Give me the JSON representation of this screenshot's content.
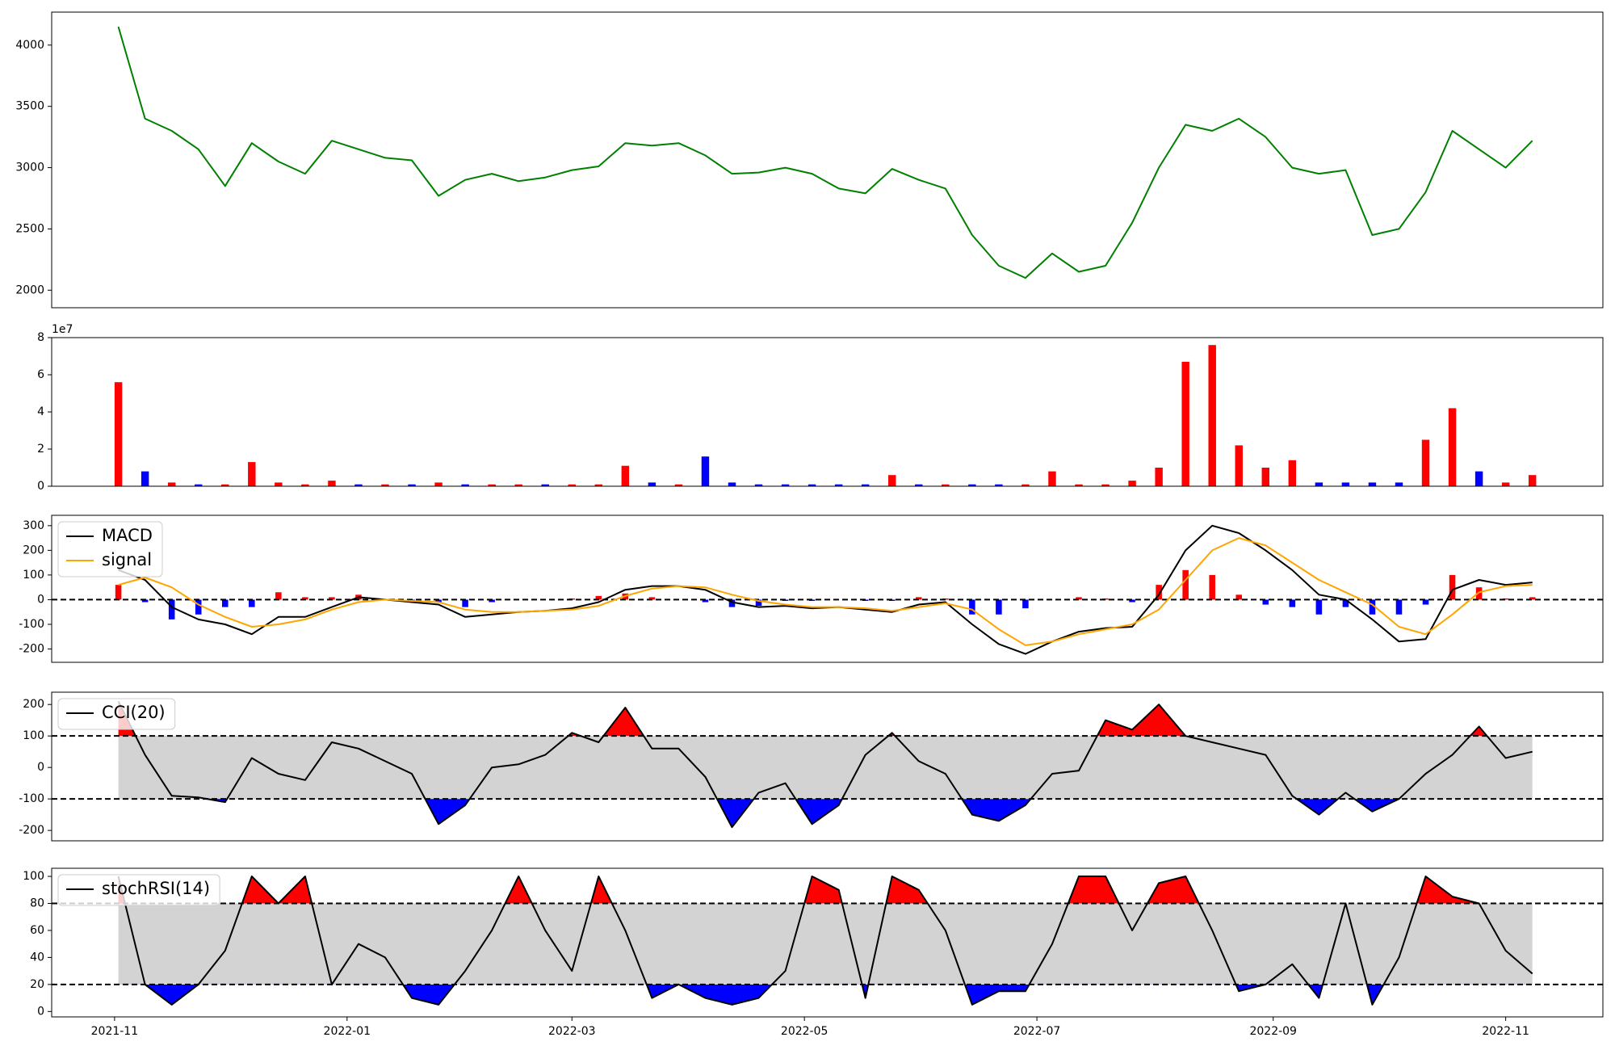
{
  "chart_data": [
    {
      "type": "line",
      "x": [
        1,
        8,
        15,
        22,
        29,
        36,
        43,
        50,
        57,
        64,
        71,
        78,
        85,
        92,
        99,
        106,
        113,
        120,
        127,
        134,
        141,
        148,
        155,
        162,
        169,
        176,
        183,
        190,
        197,
        204,
        211,
        218,
        225,
        232,
        239,
        246,
        253,
        260,
        267,
        274,
        281,
        288,
        295,
        302,
        309,
        316,
        323,
        330,
        337,
        344,
        351,
        358,
        365,
        372
      ],
      "series": [
        {
          "color": "green",
          "values": [
            4150,
            3400,
            3300,
            3150,
            2850,
            3200,
            3050,
            2950,
            3220,
            3150,
            3080,
            3060,
            2770,
            2900,
            2950,
            2890,
            2920,
            2980,
            3010,
            3200,
            3180,
            3200,
            3100,
            2950,
            2960,
            3000,
            2950,
            2830,
            2790,
            2990,
            2900,
            2830,
            2450,
            2200,
            2100,
            2300,
            2150,
            2200,
            2550,
            3000,
            3350,
            3300,
            3400,
            3250,
            3000,
            2950,
            2980,
            2450,
            2500,
            2800,
            3300,
            3150,
            3000,
            3220
          ]
        }
      ],
      "xlim": [
        -16.5,
        390.5
      ],
      "ylim": [
        1857,
        4269
      ],
      "yticks": [
        2000,
        2500,
        3000,
        3500,
        4000
      ]
    },
    {
      "type": "bar",
      "x": [
        1,
        8,
        15,
        22,
        29,
        36,
        43,
        50,
        57,
        64,
        71,
        78,
        85,
        92,
        99,
        106,
        113,
        120,
        127,
        134,
        141,
        148,
        155,
        162,
        169,
        176,
        183,
        190,
        197,
        204,
        211,
        218,
        225,
        232,
        239,
        246,
        253,
        260,
        267,
        274,
        281,
        288,
        295,
        302,
        309,
        316,
        323,
        330,
        337,
        344,
        351,
        358,
        365,
        372
      ],
      "values": [
        56000000,
        8000000,
        2000000,
        1000000,
        1000000,
        13000000,
        2000000,
        1000000,
        3000000,
        1000000,
        1000000,
        1000000,
        2000000,
        1000000,
        1000000,
        1000000,
        1000000,
        1000000,
        1000000,
        11000000,
        2000000,
        1000000,
        16000000,
        2000000,
        1000000,
        1000000,
        1000000,
        1000000,
        1000000,
        6000000,
        1000000,
        1000000,
        1000000,
        1000000,
        1000000,
        8000000,
        1000000,
        1000000,
        3000000,
        10000000,
        67000000,
        76000000,
        22000000,
        10000000,
        14000000,
        2000000,
        2000000,
        2000000,
        2000000,
        25000000,
        42000000,
        8000000,
        2000000,
        6000000
      ],
      "colors": [
        "red",
        "blue",
        "red",
        "blue",
        "red",
        "red",
        "red",
        "red",
        "red",
        "blue",
        "red",
        "blue",
        "red",
        "blue",
        "red",
        "red",
        "blue",
        "red",
        "red",
        "red",
        "blue",
        "red",
        "blue",
        "blue",
        "blue",
        "blue",
        "blue",
        "blue",
        "blue",
        "red",
        "blue",
        "red",
        "blue",
        "blue",
        "red",
        "red",
        "red",
        "red",
        "red",
        "red",
        "red",
        "red",
        "red",
        "red",
        "red",
        "blue",
        "blue",
        "blue",
        "blue",
        "red",
        "red",
        "blue",
        "red",
        "red"
      ],
      "xlim": [
        -16.5,
        390.5
      ],
      "ylim": [
        0,
        80000000
      ],
      "yticks": [
        0,
        {
          "value": 20000000,
          "label": "2"
        },
        {
          "value": 40000000,
          "label": "4"
        },
        {
          "value": 60000000,
          "label": "6"
        },
        {
          "value": 80000000,
          "label": "8"
        }
      ],
      "y_offset_label": "1e7"
    },
    {
      "type": "macd",
      "x": [
        1,
        8,
        15,
        22,
        29,
        36,
        43,
        50,
        57,
        64,
        71,
        78,
        85,
        92,
        99,
        106,
        113,
        120,
        127,
        134,
        141,
        148,
        155,
        162,
        169,
        176,
        183,
        190,
        197,
        204,
        211,
        218,
        225,
        232,
        239,
        246,
        253,
        260,
        267,
        274,
        281,
        288,
        295,
        302,
        309,
        316,
        323,
        330,
        337,
        344,
        351,
        358,
        365,
        372
      ],
      "series": [
        {
          "name": "MACD",
          "color": "black",
          "values": [
            120,
            80,
            -30,
            -80,
            -100,
            -140,
            -70,
            -70,
            -30,
            10,
            0,
            -10,
            -20,
            -70,
            -60,
            -50,
            -45,
            -35,
            -10,
            40,
            55,
            55,
            40,
            -10,
            -30,
            -25,
            -35,
            -30,
            -40,
            -50,
            -20,
            -10,
            -100,
            -180,
            -220,
            -170,
            -130,
            -115,
            -110,
            20,
            200,
            300,
            270,
            200,
            120,
            20,
            0,
            -80,
            -170,
            -160,
            40,
            80,
            60,
            70
          ]
        },
        {
          "name": "signal",
          "color": "orange",
          "values": [
            60,
            90,
            50,
            -20,
            -70,
            -110,
            -100,
            -80,
            -40,
            -10,
            0,
            -5,
            -10,
            -40,
            -50,
            -50,
            -45,
            -40,
            -25,
            15,
            45,
            55,
            50,
            20,
            -5,
            -20,
            -30,
            -30,
            -35,
            -45,
            -30,
            -15,
            -40,
            -120,
            -185,
            -170,
            -140,
            -120,
            -100,
            -40,
            80,
            200,
            250,
            220,
            150,
            80,
            30,
            -20,
            -110,
            -140,
            -60,
            30,
            55,
            60
          ]
        }
      ],
      "histogram": {
        "values": [
          60,
          -10,
          -80,
          -60,
          -30,
          -30,
          30,
          10,
          10,
          20,
          0,
          -5,
          -10,
          -30,
          -10,
          0,
          0,
          5,
          15,
          25,
          10,
          0,
          -10,
          -30,
          -25,
          -5,
          -5,
          0,
          -5,
          -5,
          10,
          5,
          -60,
          -60,
          -35,
          0,
          10,
          5,
          -10,
          60,
          120,
          100,
          20,
          -20,
          -30,
          -60,
          -30,
          -60,
          -60,
          -20,
          100,
          50,
          5,
          10
        ],
        "positive_color": "red",
        "negative_color": "blue"
      },
      "hlines": [
        0
      ],
      "xlim": [
        -16.5,
        390.5
      ],
      "ylim": [
        -254,
        342
      ],
      "yticks": [
        -200,
        -100,
        0,
        100,
        200,
        300
      ],
      "legend": "upper left"
    },
    {
      "type": "oscillator",
      "x": [
        1,
        8,
        15,
        22,
        29,
        36,
        43,
        50,
        57,
        64,
        71,
        78,
        85,
        92,
        99,
        106,
        113,
        120,
        127,
        134,
        141,
        148,
        155,
        162,
        169,
        176,
        183,
        190,
        197,
        204,
        211,
        218,
        225,
        232,
        239,
        246,
        253,
        260,
        267,
        274,
        281,
        288,
        295,
        302,
        309,
        316,
        323,
        330,
        337,
        344,
        351,
        358,
        365,
        372
      ],
      "series": [
        {
          "name": "CCI(20)",
          "color": "black",
          "values": [
            210,
            40,
            -90,
            -95,
            -110,
            30,
            -20,
            -40,
            80,
            60,
            20,
            -20,
            -180,
            -120,
            0,
            10,
            40,
            110,
            80,
            190,
            60,
            60,
            -30,
            -190,
            -80,
            -50,
            -180,
            -120,
            40,
            110,
            20,
            -20,
            -150,
            -170,
            -120,
            -20,
            -10,
            150,
            120,
            200,
            100,
            80,
            60,
            40,
            -90,
            -150,
            -80,
            -140,
            -100,
            -20,
            40,
            130,
            30,
            50
          ]
        }
      ],
      "hlines": [
        100,
        -100
      ],
      "band_color": "lightgray",
      "upper_fill": "red",
      "lower_fill": "blue",
      "xlim": [
        -16.5,
        390.5
      ],
      "ylim": [
        -233,
        239
      ],
      "yticks": [
        -200,
        -100,
        0,
        100,
        200
      ],
      "legend": "upper left"
    },
    {
      "type": "oscillator",
      "x": [
        1,
        8,
        15,
        22,
        29,
        36,
        43,
        50,
        57,
        64,
        71,
        78,
        85,
        92,
        99,
        106,
        113,
        120,
        127,
        134,
        141,
        148,
        155,
        162,
        169,
        176,
        183,
        190,
        197,
        204,
        211,
        218,
        225,
        232,
        239,
        246,
        253,
        260,
        267,
        274,
        281,
        288,
        295,
        302,
        309,
        316,
        323,
        330,
        337,
        344,
        351,
        358,
        365,
        372
      ],
      "series": [
        {
          "name": "stochRSI(14)",
          "color": "black",
          "values": [
            100,
            20,
            5,
            20,
            45,
            100,
            80,
            100,
            20,
            50,
            40,
            10,
            5,
            30,
            60,
            100,
            60,
            30,
            100,
            60,
            10,
            20,
            10,
            5,
            10,
            30,
            100,
            90,
            10,
            100,
            90,
            60,
            5,
            15,
            15,
            50,
            100,
            100,
            60,
            95,
            100,
            60,
            15,
            20,
            35,
            10,
            80,
            5,
            40,
            100,
            85,
            80,
            45,
            28
          ]
        }
      ],
      "hlines": [
        80,
        20
      ],
      "band_color": "lightgray",
      "upper_fill": "red",
      "lower_fill": "blue",
      "xlim": [
        -16.5,
        390.5
      ],
      "ylim": [
        -4,
        106
      ],
      "yticks": [
        0,
        20,
        40,
        60,
        80,
        100
      ],
      "legend": "upper left",
      "xticks": [
        {
          "value": 0,
          "label": "2021-11"
        },
        {
          "value": 61,
          "label": "2022-01"
        },
        {
          "value": 120,
          "label": "2022-03"
        },
        {
          "value": 181,
          "label": "2022-05"
        },
        {
          "value": 242,
          "label": "2022-07"
        },
        {
          "value": 304,
          "label": "2022-09"
        },
        {
          "value": 365,
          "label": "2022-11"
        }
      ]
    }
  ]
}
